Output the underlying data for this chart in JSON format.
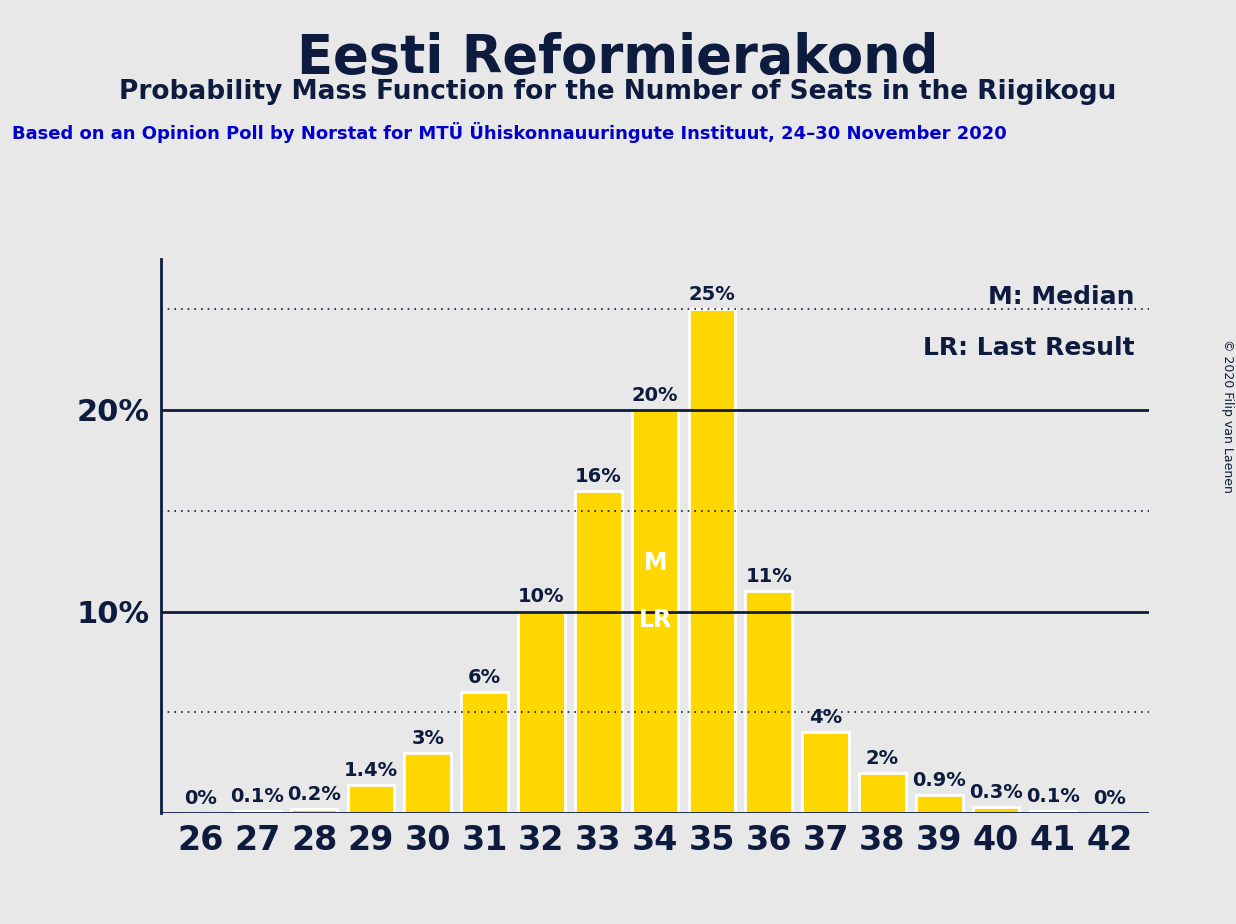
{
  "title": "Eesti Reformierakond",
  "subtitle": "Probability Mass Function for the Number of Seats in the Riigikogu",
  "source_line": "Based on an Opinion Poll by Norstat for MTÜ Ühiskonnauuringute Instituut, 24–30 November 2020",
  "copyright": "© 2020 Filip van Laenen",
  "seats": [
    26,
    27,
    28,
    29,
    30,
    31,
    32,
    33,
    34,
    35,
    36,
    37,
    38,
    39,
    40,
    41,
    42
  ],
  "probabilities": [
    0.0,
    0.1,
    0.2,
    1.4,
    3.0,
    6.0,
    10.0,
    16.0,
    20.0,
    25.0,
    11.0,
    4.0,
    2.0,
    0.9,
    0.3,
    0.1,
    0.0
  ],
  "bar_color": "#FFD700",
  "bar_edge_color": "#FFFFFF",
  "median_seat": 34,
  "lr_seat": 34,
  "bg_color": "#E8E8E8",
  "title_color": "#0d1b3e",
  "source_color": "#0000CD",
  "solid_line_color": "#0d1b3e",
  "dotted_line_color": "#0d1b3e",
  "label_color": "#0d1b3e",
  "ml_label_color": "#FFFFFF",
  "ytick_solid": [
    10,
    20
  ],
  "ytick_dotted": [
    5,
    15,
    25
  ],
  "ylim_max": 27.5,
  "legend_lr": "LR: Last Result",
  "legend_m": "M: Median",
  "title_fontsize": 38,
  "subtitle_fontsize": 19,
  "source_fontsize": 13,
  "bar_label_fontsize": 14,
  "ytick_fontsize": 22,
  "xtick_fontsize": 24,
  "legend_fontsize": 18,
  "ml_fontsize": 17,
  "copyright_fontsize": 9
}
